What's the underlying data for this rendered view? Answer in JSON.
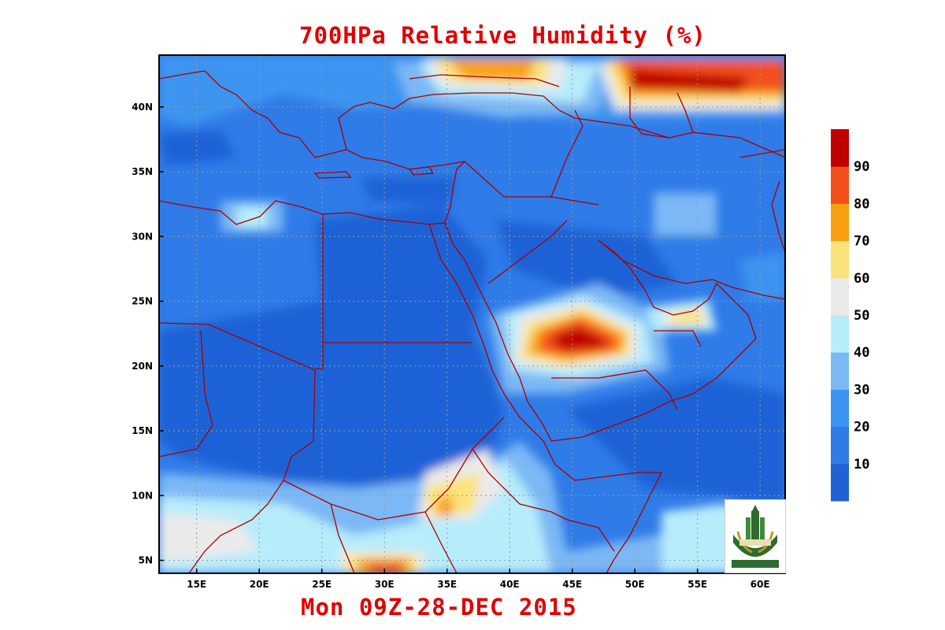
{
  "title": "700HPa Relative Humidity (%)",
  "valid_time": "Mon 09Z-28-DEC 2015",
  "colors": {
    "title": "#e00000",
    "border": "#aa0000",
    "grid": "#9a9a9a"
  },
  "map": {
    "lon_range": [
      12,
      62
    ],
    "lat_range": [
      4,
      44
    ],
    "lon_ticks": [
      {
        "value": 15,
        "label": "15E"
      },
      {
        "value": 20,
        "label": "20E"
      },
      {
        "value": 25,
        "label": "25E"
      },
      {
        "value": 30,
        "label": "30E"
      },
      {
        "value": 35,
        "label": "35E"
      },
      {
        "value": 40,
        "label": "40E"
      },
      {
        "value": 45,
        "label": "45E"
      },
      {
        "value": 50,
        "label": "50E"
      },
      {
        "value": 55,
        "label": "55E"
      },
      {
        "value": 60,
        "label": "60E"
      }
    ],
    "lat_ticks": [
      {
        "value": 5,
        "label": "5N"
      },
      {
        "value": 10,
        "label": "10N"
      },
      {
        "value": 15,
        "label": "15N"
      },
      {
        "value": 20,
        "label": "20N"
      },
      {
        "value": 25,
        "label": "25N"
      },
      {
        "value": 30,
        "label": "30N"
      },
      {
        "value": 35,
        "label": "35N"
      },
      {
        "value": 40,
        "label": "40N"
      }
    ]
  },
  "colorbar": {
    "colors": [
      "#1e62d6",
      "#2f7be8",
      "#3d94f0",
      "#7cb8f5",
      "#b7ecfa",
      "#eaeaea",
      "#fce27a",
      "#f9a010",
      "#f2501a",
      "#c00000"
    ],
    "labels": [
      "10",
      "20",
      "30",
      "40",
      "50",
      "60",
      "70",
      "80",
      "90"
    ]
  },
  "humidity_features": [
    {
      "name": "arabia-core",
      "lon": 45.5,
      "lat": 22.2,
      "levels": [
        40,
        60,
        70,
        80,
        90
      ]
    },
    {
      "name": "caucasus-band",
      "lon": 52,
      "lat": 42,
      "levels": [
        50,
        60,
        70,
        80,
        90
      ]
    },
    {
      "name": "turkey-north",
      "lon": 38,
      "lat": 43,
      "levels": [
        50,
        60,
        70
      ]
    },
    {
      "name": "gulf",
      "lon": 54.5,
      "lat": 24.5,
      "levels": [
        50,
        60,
        70
      ]
    },
    {
      "name": "south-sudan",
      "lon": 34.5,
      "lat": 9.5,
      "levels": [
        50,
        60,
        70,
        80
      ]
    },
    {
      "name": "central-africa",
      "lon": 31,
      "lat": 4.5,
      "levels": [
        50,
        60,
        70,
        80,
        90
      ]
    },
    {
      "name": "west-africa-south",
      "lon": 16,
      "lat": 7,
      "levels": [
        40,
        50,
        60
      ]
    }
  ]
}
